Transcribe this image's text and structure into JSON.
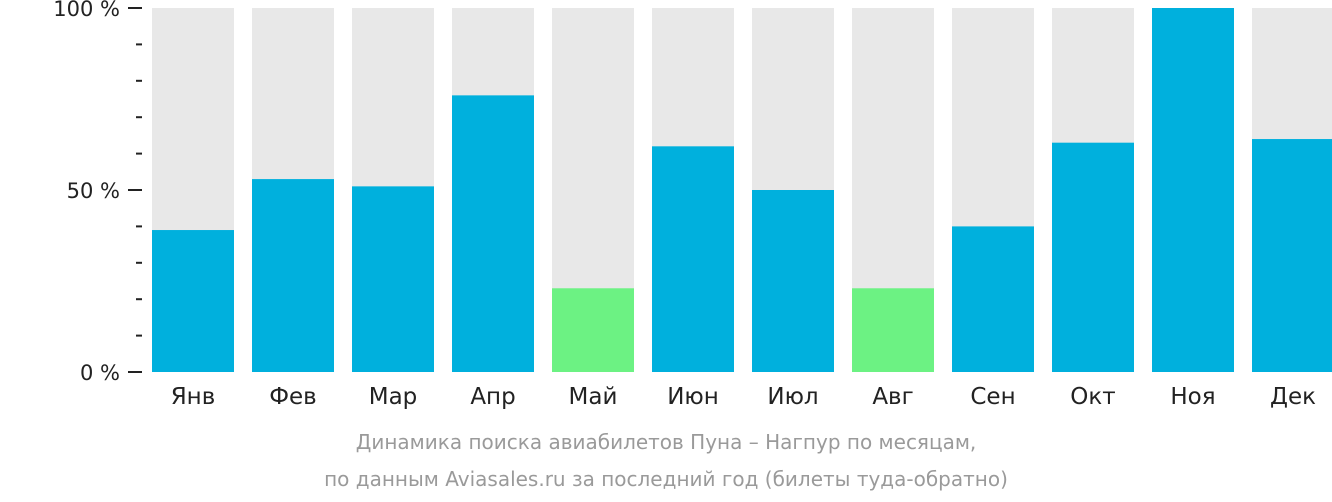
{
  "chart_data": {
    "type": "bar",
    "categories": [
      "Янв",
      "Фев",
      "Мар",
      "Апр",
      "Май",
      "Июн",
      "Июл",
      "Авг",
      "Сен",
      "Окт",
      "Ноя",
      "Дек"
    ],
    "values": [
      39,
      53,
      51,
      76,
      23,
      62,
      50,
      23,
      40,
      63,
      100,
      64
    ],
    "highlight": [
      false,
      false,
      false,
      false,
      true,
      false,
      false,
      true,
      false,
      false,
      false,
      false
    ],
    "ylim": [
      0,
      100
    ],
    "yticks": [
      {
        "value": 0,
        "label": "0 %"
      },
      {
        "value": 50,
        "label": "50 %"
      },
      {
        "value": 100,
        "label": "100 %"
      }
    ],
    "minor_tick_step": 10,
    "grid": false,
    "colors": {
      "bar": "#00b0dd",
      "bar_highlight": "#6cf283",
      "background_bar": "#e8e8e8",
      "axis": "#222222"
    }
  },
  "caption": {
    "line1": "Динамика поиска авиабилетов Пуна – Нагпур по месяцам,",
    "line2": "по данным Aviasales.ru за последний год (билеты туда-обратно)"
  }
}
